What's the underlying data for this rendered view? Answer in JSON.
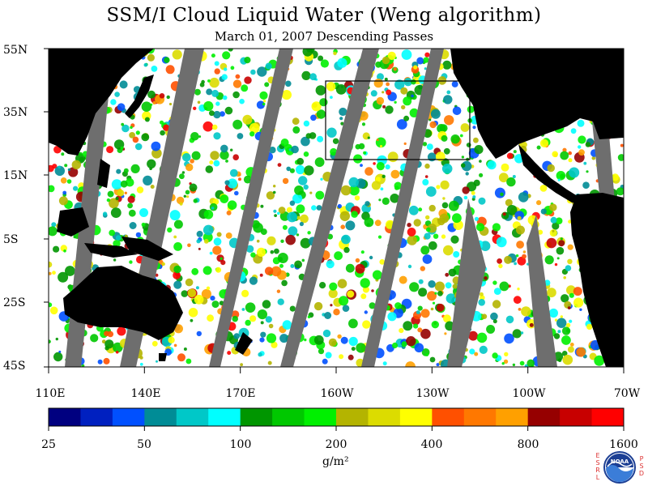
{
  "title": "SSM/I Cloud Liquid Water (Weng algorithm)",
  "subtitle": "March 01, 2007  Descending Passes",
  "lat_labels": [
    "55N",
    "35N",
    "15N",
    "5S",
    "25S",
    "45S"
  ],
  "lon_labels": [
    "110E",
    "140E",
    "170E",
    "160W",
    "130W",
    "100W",
    "70W"
  ],
  "colorbar": {
    "tick_labels": [
      "25",
      "50",
      "100",
      "200",
      "400",
      "800",
      "1600"
    ],
    "unit": "g/m²",
    "colors": [
      "#000080",
      "#0020c0",
      "#0050ff",
      "#008c96",
      "#00c8c8",
      "#00ffff",
      "#009600",
      "#00c800",
      "#00f000",
      "#b4b400",
      "#dcdc00",
      "#ffff00",
      "#ff5000",
      "#ff7800",
      "#ffa000",
      "#960000",
      "#c80000",
      "#ff0000"
    ]
  },
  "map_colors": {
    "land": "#000000",
    "gap": "#6e6e6e",
    "background": "#ffffff"
  },
  "logo": {
    "left_letters": "ESRL",
    "right_letters": "PSD",
    "text": "NOAA"
  }
}
